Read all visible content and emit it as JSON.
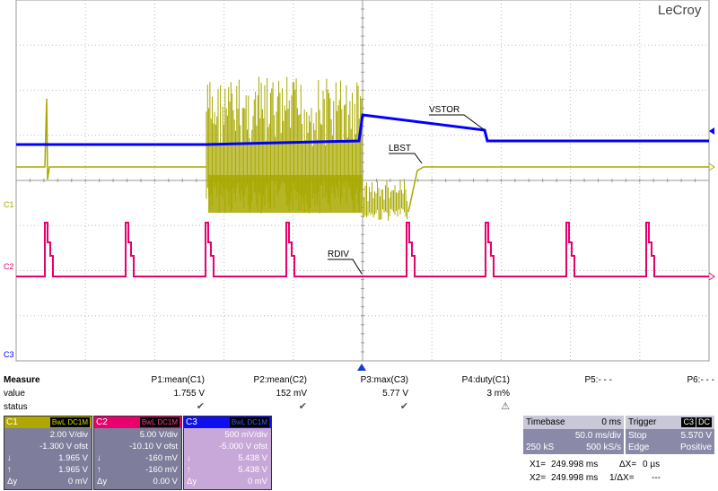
{
  "brand": "LeCroy",
  "traces": {
    "labels": {
      "vstor": "VSTOR",
      "lbst": "LBST",
      "rdiv": "RDIV"
    },
    "markers": {
      "c1": "C1",
      "c2": "C2",
      "c3": "C3"
    },
    "colors": {
      "c1": "#a8a800",
      "c2": "#e8006e",
      "c3": "#0000ff",
      "grid": "#bbbbbb"
    }
  },
  "measure": {
    "header": "Measure",
    "value_label": "value",
    "status_label": "status",
    "params": [
      {
        "name": "P1:mean(C1)",
        "value": "1.755 V",
        "status": "✔"
      },
      {
        "name": "P2:mean(C2)",
        "value": "152 mV",
        "status": "✔"
      },
      {
        "name": "P3:max(C3)",
        "value": "5.77 V",
        "status": "✔"
      },
      {
        "name": "P4:duty(C1)",
        "value": "3 m%",
        "status": "⚠"
      },
      {
        "name": "P5:- - -",
        "value": "",
        "status": ""
      },
      {
        "name": "P6:- - -",
        "value": "",
        "status": ""
      }
    ]
  },
  "channels": [
    {
      "name": "C1",
      "tags": "BwL DC1M",
      "vdiv": "2.00 V/div",
      "ofst": "-1.300 V ofst",
      "down_sym": "↓",
      "down": "1.965 V",
      "up_sym": "↑",
      "up": "1.965 V",
      "dy_sym": "Δy",
      "dy": "0 mV",
      "color": "#b0a800",
      "bg": "#7e7e9c"
    },
    {
      "name": "C2",
      "tags": "BwL DC1M",
      "vdiv": "5.00 V/div",
      "ofst": "-10.10 V ofst",
      "down_sym": "↓",
      "down": "-160 mV",
      "up_sym": "↑",
      "up": "-160 mV",
      "dy_sym": "Δy",
      "dy": "0.00 V",
      "color": "#e8006e",
      "bg": "#7e7e9c"
    },
    {
      "name": "C3",
      "tags": "BwL DC1M",
      "vdiv": "500 mV/div",
      "ofst": "-5.000 V ofst",
      "down_sym": "↓",
      "down": "5.438 V",
      "up_sym": "↑",
      "up": "5.438 V",
      "dy_sym": "Δy",
      "dy": "0 mV",
      "color": "#1010ee",
      "bg": "#c8a8d8"
    }
  ],
  "timebase": {
    "label": "Timebase",
    "delay": "0 ms",
    "tdiv": "50.0 ms/div",
    "samples": "250 kS",
    "rate": "500 kS/s"
  },
  "trigger": {
    "label": "Trigger",
    "source": "C3",
    "coupling": "DC",
    "mode": "Stop",
    "level": "5.570 V",
    "type": "Edge",
    "slope": "Positive"
  },
  "cursors": {
    "x1_label": "X1=",
    "x1": "249.998 ms",
    "dx_label": "ΔX=",
    "dx": "0 µs",
    "x2_label": "X2=",
    "x2": "249.998 ms",
    "inv_label": "1/ΔX=",
    "inv": "---"
  }
}
